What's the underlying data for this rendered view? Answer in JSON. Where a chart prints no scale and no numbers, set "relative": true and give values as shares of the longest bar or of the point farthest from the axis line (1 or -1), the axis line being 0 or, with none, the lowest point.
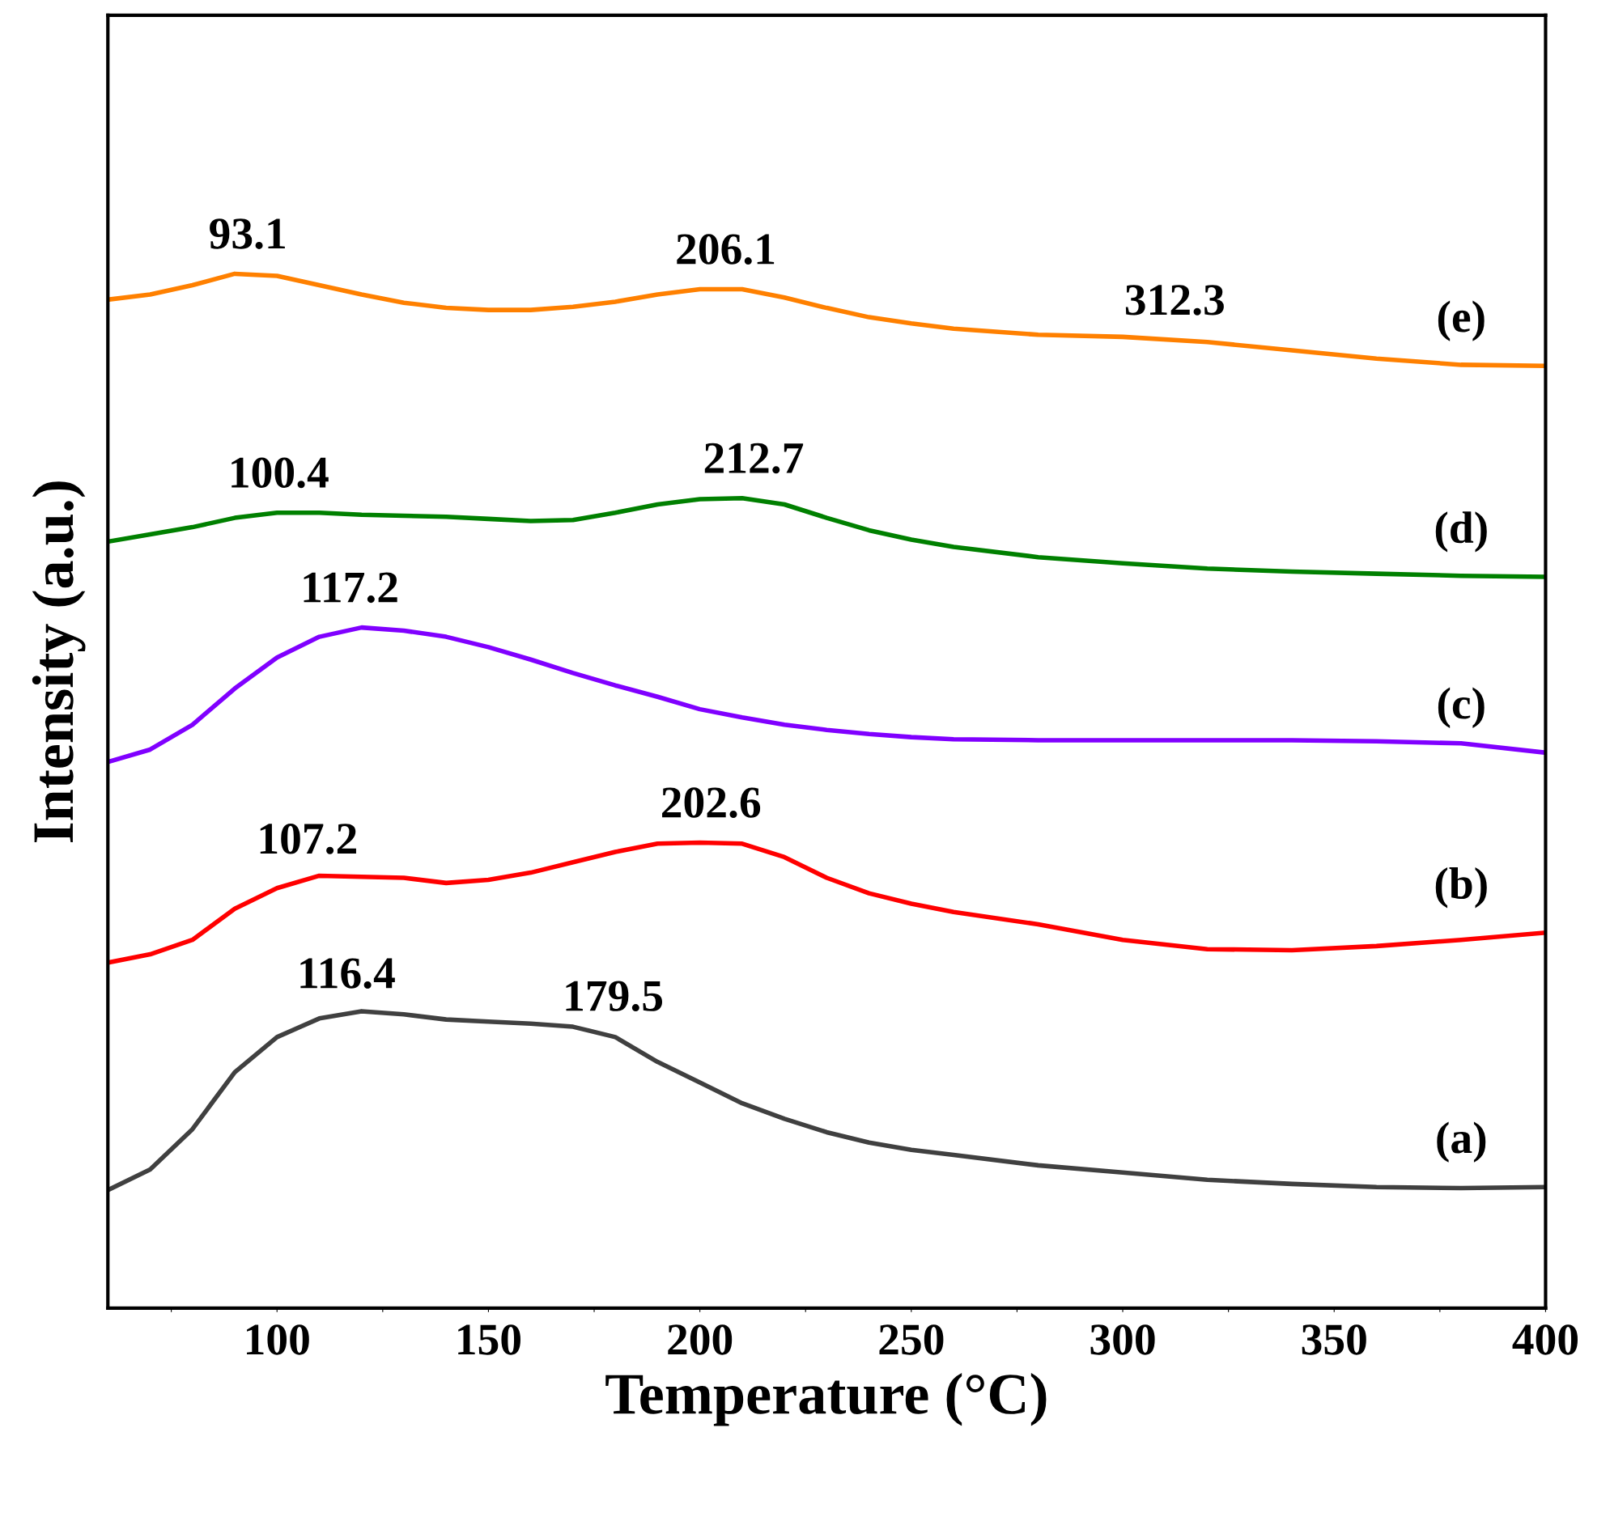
{
  "chart_data": {
    "type": "line",
    "relative": true,
    "xlabel": "Temperature (°C)",
    "ylabel": "Intensity (a.u.)",
    "x": [
      60,
      70,
      80,
      90,
      100,
      110,
      120,
      130,
      140,
      150,
      160,
      170,
      180,
      190,
      200,
      210,
      220,
      230,
      240,
      250,
      260,
      280,
      300,
      320,
      340,
      360,
      380,
      400
    ],
    "xlim": [
      60,
      400
    ],
    "xticks": [
      {
        "value": 75,
        "label": null
      },
      100,
      {
        "value": 125,
        "label": null
      },
      150,
      {
        "value": 175,
        "label": null
      },
      200,
      {
        "value": 225,
        "label": null
      },
      250,
      {
        "value": 275,
        "label": null
      },
      300,
      {
        "value": 325,
        "label": null
      },
      350,
      {
        "value": 375,
        "label": null
      },
      400
    ],
    "series": [
      {
        "name": "(a)",
        "color": "#404040",
        "values": [
          0.114,
          0.134,
          0.173,
          0.228,
          0.262,
          0.28,
          0.287,
          0.284,
          0.279,
          0.277,
          0.275,
          0.272,
          0.262,
          0.238,
          0.218,
          0.198,
          0.183,
          0.17,
          0.16,
          0.153,
          0.148,
          0.138,
          0.131,
          0.124,
          0.12,
          0.117,
          0.116,
          0.117
        ]
      },
      {
        "name": "(b)",
        "color": "#ff0000",
        "values": [
          0.334,
          0.342,
          0.356,
          0.386,
          0.406,
          0.418,
          0.417,
          0.416,
          0.411,
          0.414,
          0.421,
          0.431,
          0.441,
          0.449,
          0.45,
          0.449,
          0.436,
          0.416,
          0.401,
          0.391,
          0.383,
          0.371,
          0.356,
          0.347,
          0.346,
          0.35,
          0.356,
          0.363
        ]
      },
      {
        "name": "(c)",
        "color": "#8000ff",
        "values": [
          0.528,
          0.54,
          0.564,
          0.599,
          0.629,
          0.649,
          0.658,
          0.655,
          0.649,
          0.639,
          0.627,
          0.614,
          0.602,
          0.591,
          0.579,
          0.571,
          0.564,
          0.559,
          0.555,
          0.552,
          0.55,
          0.549,
          0.549,
          0.549,
          0.549,
          0.548,
          0.546,
          0.537
        ]
      },
      {
        "name": "(d)",
        "color": "#008000",
        "values": [
          0.741,
          0.748,
          0.755,
          0.764,
          0.769,
          0.769,
          0.767,
          0.766,
          0.765,
          0.763,
          0.761,
          0.762,
          0.769,
          0.777,
          0.782,
          0.783,
          0.777,
          0.764,
          0.752,
          0.743,
          0.736,
          0.726,
          0.72,
          0.715,
          0.712,
          0.71,
          0.708,
          0.707
        ]
      },
      {
        "name": "(e)",
        "color": "#ff8000",
        "values": [
          0.975,
          0.98,
          0.989,
          1.0,
          0.998,
          0.989,
          0.98,
          0.972,
          0.967,
          0.965,
          0.965,
          0.968,
          0.973,
          0.98,
          0.985,
          0.985,
          0.977,
          0.967,
          0.958,
          0.952,
          0.947,
          0.941,
          0.939,
          0.934,
          0.926,
          0.918,
          0.912,
          0.911
        ]
      }
    ],
    "annotations": [
      {
        "text": "116.4",
        "x": 116.4,
        "y": 0.285
      },
      {
        "text": "179.5",
        "x": 179.5,
        "y": 0.263
      },
      {
        "text": "107.2",
        "x": 107.2,
        "y": 0.415
      },
      {
        "text": "202.6",
        "x": 202.6,
        "y": 0.45
      },
      {
        "text": "117.2",
        "x": 117.2,
        "y": 0.658
      },
      {
        "text": "100.4",
        "x": 100.4,
        "y": 0.769
      },
      {
        "text": "212.7",
        "x": 212.7,
        "y": 0.783
      },
      {
        "text": "93.1",
        "x": 93.1,
        "y": 1.0
      },
      {
        "text": "206.1",
        "x": 206.1,
        "y": 0.985
      },
      {
        "text": "312.3",
        "x": 312.3,
        "y": 0.936
      }
    ],
    "grid": false,
    "legend": false,
    "marker": "none",
    "line_style": "solid"
  }
}
